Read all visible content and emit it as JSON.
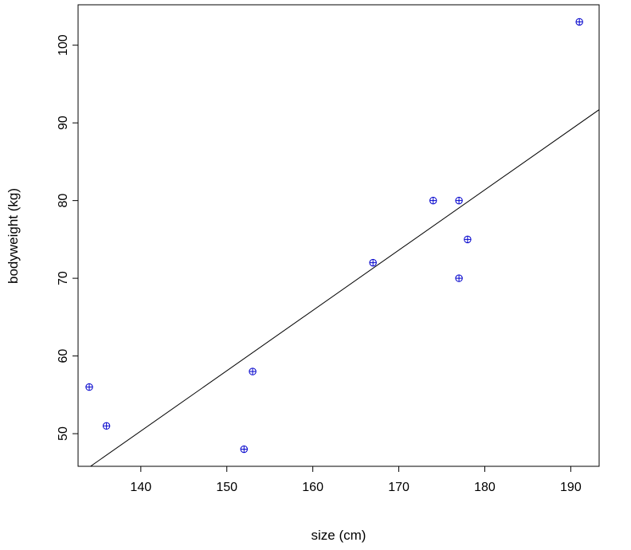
{
  "chart_data": {
    "type": "scatter",
    "title": "",
    "xlabel": "size (cm)",
    "ylabel": "bodyweight (kg)",
    "xlim": [
      132.7,
      193.3
    ],
    "ylim": [
      45.8,
      105.2
    ],
    "xticks": [
      140,
      150,
      160,
      170,
      180,
      190
    ],
    "yticks": [
      50,
      60,
      70,
      80,
      90,
      100
    ],
    "grid": false,
    "legend": "none",
    "point_color": "#0000cc",
    "line_color": "#000000",
    "points": [
      {
        "x": 134,
        "y": 56
      },
      {
        "x": 136,
        "y": 51
      },
      {
        "x": 152,
        "y": 48
      },
      {
        "x": 153,
        "y": 58
      },
      {
        "x": 167,
        "y": 72
      },
      {
        "x": 174,
        "y": 80
      },
      {
        "x": 177,
        "y": 80
      },
      {
        "x": 177,
        "y": 70
      },
      {
        "x": 178,
        "y": 75
      },
      {
        "x": 191,
        "y": 103
      }
    ],
    "regression_line": {
      "slope": 0.776,
      "intercept": -58.3
    }
  }
}
